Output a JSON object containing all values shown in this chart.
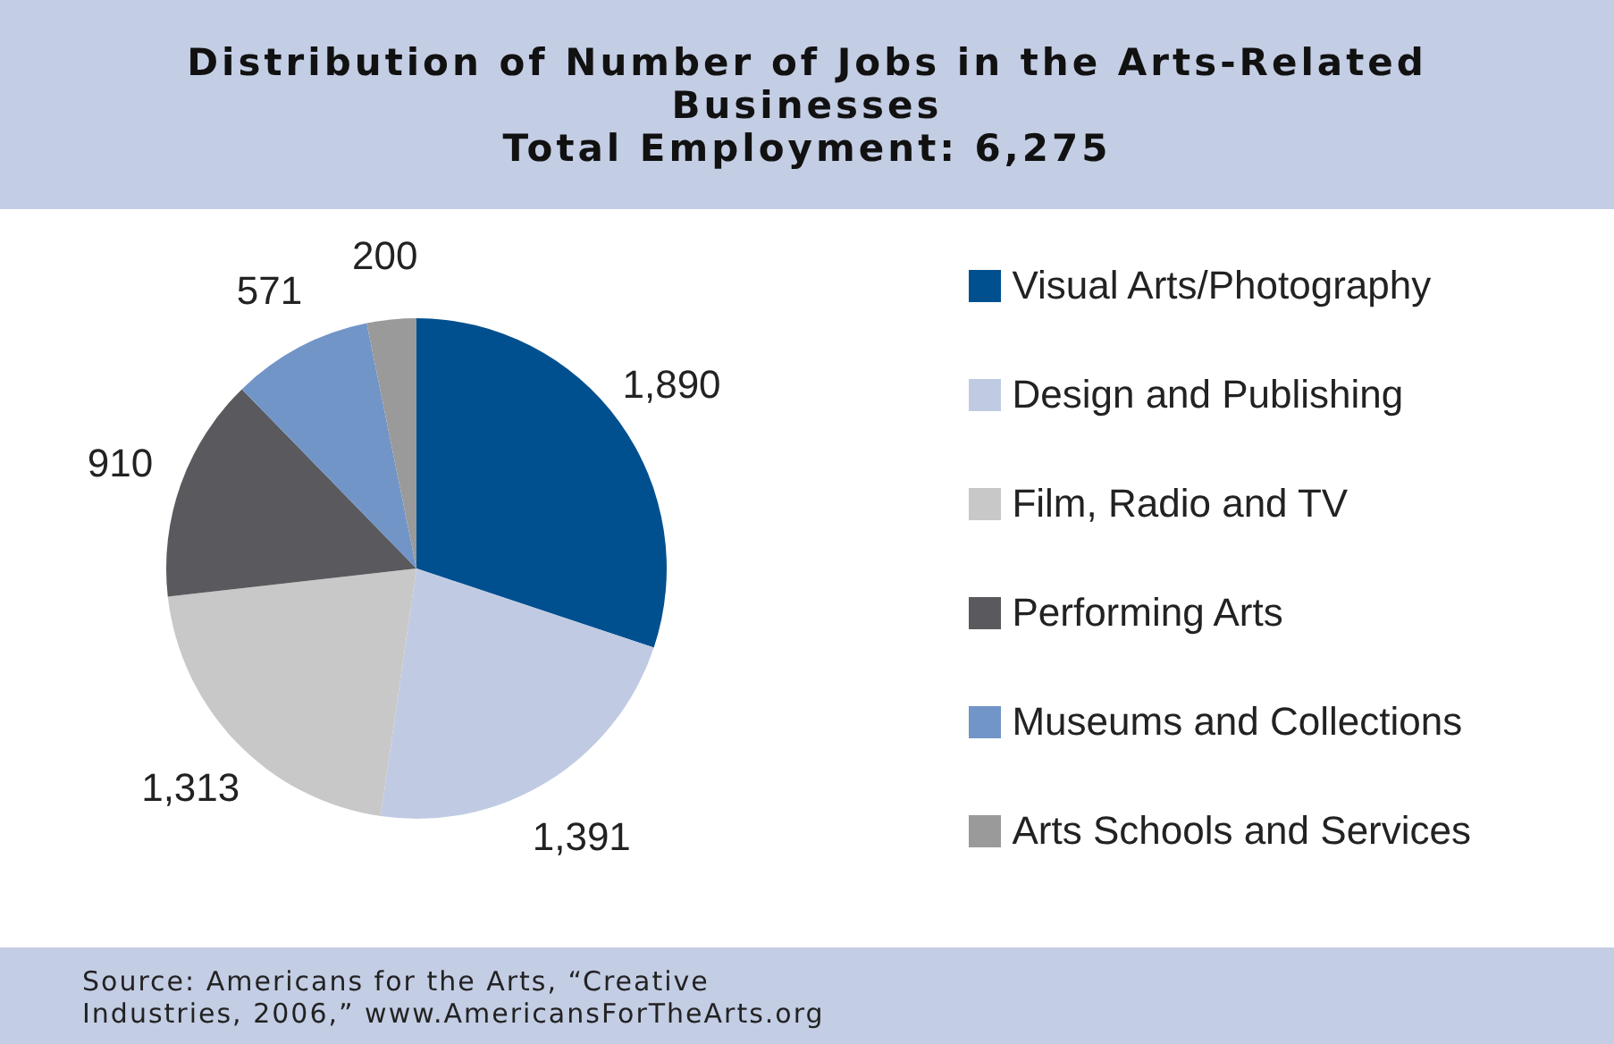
{
  "chart_data": {
    "type": "pie",
    "title": "Distribution of Number of Jobs in the Arts-Related Businesses",
    "subtitle": "Total Employment: 6,275",
    "categories": [
      "Visual Arts/Photography",
      "Design and Publishing",
      "Film, Radio and TV",
      "Performing Arts",
      "Museums and Collections",
      "Arts Schools and Services"
    ],
    "values": [
      1890,
      1391,
      1313,
      910,
      571,
      200
    ],
    "colors": [
      "#00508f",
      "#c0cbe3",
      "#c8c8c8",
      "#5a5a5e",
      "#7295c8",
      "#9a9a9a"
    ],
    "value_labels": [
      "1,890",
      "1,391",
      "1,313",
      "910",
      "571",
      "200"
    ],
    "legend": "right",
    "annotations": [
      "Source: Americans for the Arts, “Creative Industries, 2006,” www.AmericansForTheArts.org"
    ]
  }
}
